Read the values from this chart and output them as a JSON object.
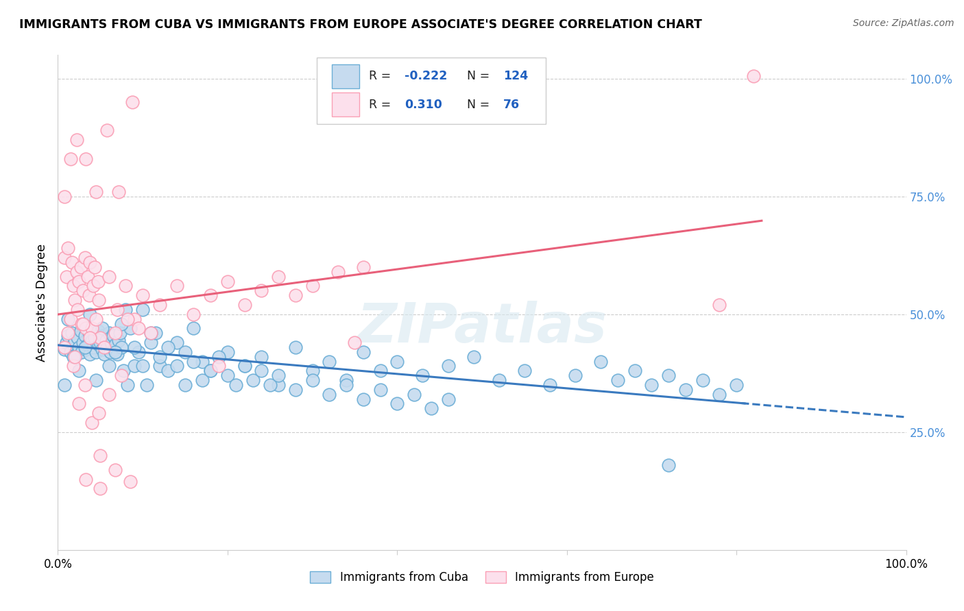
{
  "title": "IMMIGRANTS FROM CUBA VS IMMIGRANTS FROM EUROPE ASSOCIATE'S DEGREE CORRELATION CHART",
  "source": "Source: ZipAtlas.com",
  "ylabel": "Associate's Degree",
  "blue_R": -0.222,
  "blue_N": 124,
  "pink_R": 0.31,
  "pink_N": 76,
  "blue_color": "#6baed6",
  "pink_color": "#fa9fb5",
  "blue_fill": "#c6dbef",
  "pink_fill": "#fce0ec",
  "blue_trend_color": "#3a7abf",
  "pink_trend_color": "#e8607a",
  "watermark": "ZIPatlas",
  "background_color": "#ffffff",
  "blue_x": [
    0.008,
    0.01,
    0.012,
    0.015,
    0.017,
    0.018,
    0.02,
    0.022,
    0.023,
    0.025,
    0.027,
    0.028,
    0.03,
    0.032,
    0.033,
    0.035,
    0.037,
    0.038,
    0.04,
    0.042,
    0.043,
    0.045,
    0.047,
    0.048,
    0.05,
    0.052,
    0.053,
    0.055,
    0.057,
    0.058,
    0.06,
    0.062,
    0.063,
    0.065,
    0.067,
    0.068,
    0.07,
    0.072,
    0.073,
    0.075,
    0.077,
    0.08,
    0.085,
    0.09,
    0.095,
    0.1,
    0.105,
    0.11,
    0.115,
    0.12,
    0.008,
    0.012,
    0.018,
    0.025,
    0.032,
    0.038,
    0.045,
    0.052,
    0.06,
    0.068,
    0.075,
    0.082,
    0.09,
    0.1,
    0.11,
    0.12,
    0.13,
    0.14,
    0.15,
    0.16,
    0.17,
    0.18,
    0.2,
    0.22,
    0.24,
    0.26,
    0.28,
    0.3,
    0.32,
    0.34,
    0.36,
    0.38,
    0.4,
    0.43,
    0.46,
    0.49,
    0.52,
    0.55,
    0.58,
    0.61,
    0.64,
    0.66,
    0.68,
    0.7,
    0.72,
    0.74,
    0.76,
    0.78,
    0.8,
    0.72,
    0.13,
    0.14,
    0.15,
    0.16,
    0.17,
    0.18,
    0.19,
    0.2,
    0.21,
    0.22,
    0.23,
    0.24,
    0.25,
    0.26,
    0.28,
    0.3,
    0.32,
    0.34,
    0.36,
    0.38,
    0.4,
    0.42,
    0.44,
    0.46
  ],
  "blue_y": [
    0.425,
    0.44,
    0.455,
    0.42,
    0.46,
    0.435,
    0.445,
    0.415,
    0.45,
    0.43,
    0.465,
    0.42,
    0.44,
    0.455,
    0.425,
    0.435,
    0.46,
    0.415,
    0.445,
    0.43,
    0.45,
    0.42,
    0.465,
    0.435,
    0.44,
    0.425,
    0.455,
    0.415,
    0.445,
    0.43,
    0.46,
    0.42,
    0.44,
    0.455,
    0.425,
    0.435,
    0.415,
    0.445,
    0.46,
    0.43,
    0.38,
    0.51,
    0.47,
    0.39,
    0.42,
    0.51,
    0.35,
    0.44,
    0.46,
    0.39,
    0.35,
    0.49,
    0.41,
    0.38,
    0.43,
    0.5,
    0.36,
    0.47,
    0.39,
    0.42,
    0.48,
    0.35,
    0.43,
    0.39,
    0.46,
    0.41,
    0.38,
    0.44,
    0.35,
    0.47,
    0.4,
    0.38,
    0.42,
    0.39,
    0.41,
    0.35,
    0.43,
    0.38,
    0.4,
    0.36,
    0.42,
    0.38,
    0.4,
    0.37,
    0.39,
    0.41,
    0.36,
    0.38,
    0.35,
    0.37,
    0.4,
    0.36,
    0.38,
    0.35,
    0.37,
    0.34,
    0.36,
    0.33,
    0.35,
    0.18,
    0.43,
    0.39,
    0.42,
    0.4,
    0.36,
    0.38,
    0.41,
    0.37,
    0.35,
    0.39,
    0.36,
    0.38,
    0.35,
    0.37,
    0.34,
    0.36,
    0.33,
    0.35,
    0.32,
    0.34,
    0.31,
    0.33,
    0.3,
    0.32
  ],
  "pink_x": [
    0.008,
    0.01,
    0.012,
    0.015,
    0.017,
    0.018,
    0.02,
    0.022,
    0.023,
    0.025,
    0.027,
    0.028,
    0.03,
    0.032,
    0.033,
    0.035,
    0.037,
    0.038,
    0.04,
    0.042,
    0.043,
    0.045,
    0.047,
    0.048,
    0.05,
    0.06,
    0.07,
    0.08,
    0.09,
    0.1,
    0.12,
    0.14,
    0.16,
    0.18,
    0.2,
    0.22,
    0.24,
    0.26,
    0.28,
    0.3,
    0.33,
    0.36,
    0.04,
    0.05,
    0.018,
    0.025,
    0.032,
    0.048,
    0.06,
    0.075,
    0.008,
    0.012,
    0.02,
    0.03,
    0.038,
    0.055,
    0.068,
    0.082,
    0.095,
    0.11,
    0.008,
    0.015,
    0.022,
    0.033,
    0.045,
    0.058,
    0.072,
    0.088,
    0.78,
    0.82,
    0.033,
    0.05,
    0.068,
    0.085,
    0.19,
    0.35
  ],
  "pink_y": [
    0.62,
    0.58,
    0.64,
    0.49,
    0.61,
    0.56,
    0.53,
    0.59,
    0.51,
    0.57,
    0.6,
    0.48,
    0.55,
    0.62,
    0.47,
    0.58,
    0.54,
    0.61,
    0.47,
    0.56,
    0.6,
    0.49,
    0.57,
    0.53,
    0.45,
    0.58,
    0.51,
    0.56,
    0.49,
    0.54,
    0.52,
    0.56,
    0.5,
    0.54,
    0.57,
    0.52,
    0.55,
    0.58,
    0.54,
    0.56,
    0.59,
    0.6,
    0.27,
    0.2,
    0.39,
    0.31,
    0.35,
    0.29,
    0.33,
    0.37,
    0.43,
    0.46,
    0.41,
    0.48,
    0.45,
    0.43,
    0.46,
    0.49,
    0.47,
    0.46,
    0.75,
    0.83,
    0.87,
    0.83,
    0.76,
    0.89,
    0.76,
    0.95,
    0.52,
    1.005,
    0.15,
    0.13,
    0.17,
    0.145,
    0.39,
    0.44
  ]
}
